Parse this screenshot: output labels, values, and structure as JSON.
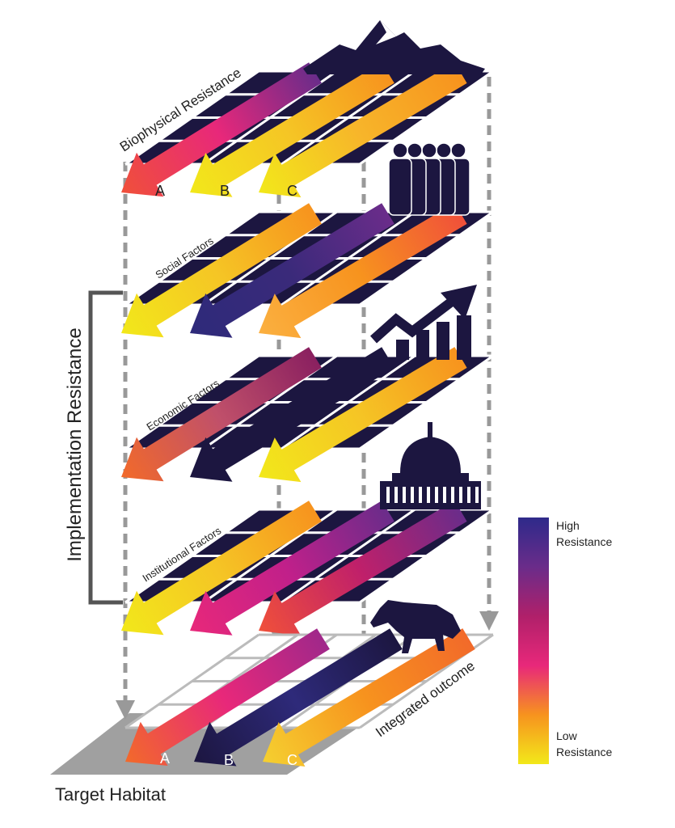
{
  "layers": [
    {
      "name": "Biophysical Resistance",
      "icon": "mountain-icon",
      "arrows": [
        [
          "#6a2c8a",
          "#e8287a",
          "#f0503a"
        ],
        [
          "#f7931e",
          "#f5c525",
          "#f2e81a"
        ],
        [
          "#f7931e",
          "#f7b52a",
          "#f2e81a"
        ]
      ]
    },
    {
      "name": "Social Factors",
      "icon": "people-icon",
      "arrows": [
        [
          "#f7931e",
          "#f5c525",
          "#f2e81a"
        ],
        [
          "#6a2c8a",
          "#3a2a7a",
          "#2e2a7a"
        ],
        [
          "#f0503a",
          "#f7931e",
          "#fbb040"
        ]
      ]
    },
    {
      "name": "Economic Factors",
      "icon": "growth-chart-icon",
      "arrows": [
        [
          "#8a2060",
          "#c0506a",
          "#f26a2a"
        ],
        [
          "#1c1640",
          "#1c1640",
          "#1c1640"
        ],
        [
          "#f7931e",
          "#f5c525",
          "#f2e81a"
        ]
      ]
    },
    {
      "name": "Institutional Factors",
      "icon": "capitol-icon",
      "arrows": [
        [
          "#f7931e",
          "#f5c525",
          "#f2e81a"
        ],
        [
          "#6a2c8a",
          "#c0208a",
          "#e8287a"
        ],
        [
          "#6a2c8a",
          "#c0206a",
          "#f0503a"
        ]
      ]
    }
  ],
  "integrated": {
    "label": "Integrated outcome",
    "icon": "wolf-icon",
    "arrows": [
      [
        "#a0288a",
        "#e8287a",
        "#f26a2a"
      ],
      [
        "#1c1640",
        "#2e2a7a",
        "#1c1640"
      ],
      [
        "#f26a2a",
        "#f7931e",
        "#f5d030"
      ]
    ]
  },
  "arrow_labels": [
    "A",
    "B",
    "C"
  ],
  "bracket_label": "Implementation Resistance",
  "base_label": "Target Habitat",
  "legend": {
    "high": "High Resistance",
    "low": "Low Resistance",
    "colors": [
      "#2e2a8a",
      "#6a2c8a",
      "#b0206a",
      "#e8287a",
      "#f7931e",
      "#f2e81a"
    ]
  },
  "colors": {
    "grid": "#1c1640",
    "dash": "#999999",
    "base": "#a0a0a0"
  }
}
